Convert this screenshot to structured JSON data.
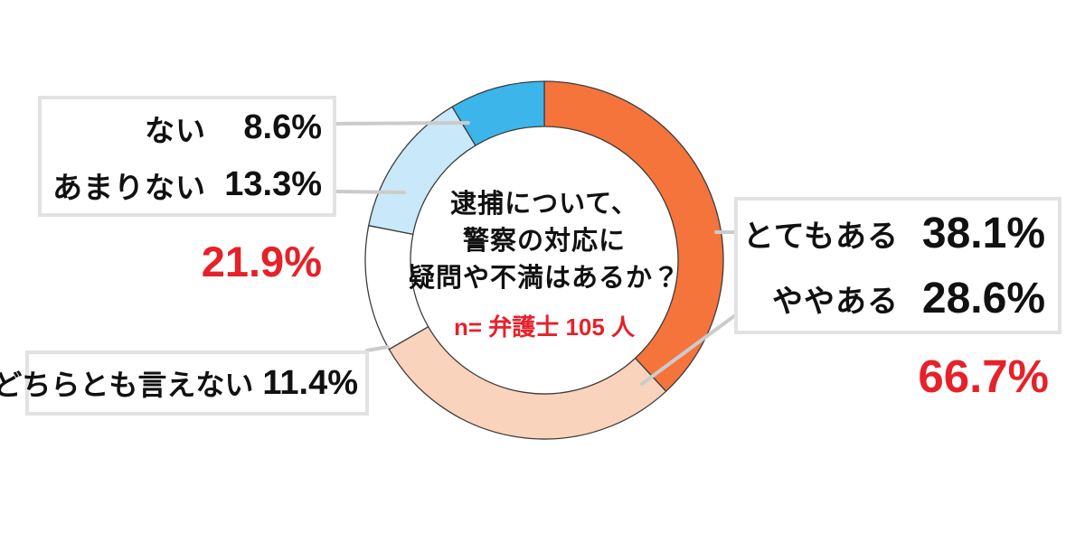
{
  "colors": {
    "background": "#FFFFFF",
    "accent_red": "#E62129",
    "segment_outline": "#3C3C3C",
    "leader_line": "#CBCBCB",
    "box_border": "#E2E2E2",
    "text": "#111111"
  },
  "chart_data": {
    "type": "pie",
    "subtype": "donut",
    "title": "逮捕について、警察の対応に疑問や不満はあるか？",
    "title_lines": [
      "逮捕について、",
      "警察の対応に",
      "疑問や不満はあるか？"
    ],
    "sample_note": "n= 弁護士 105 人",
    "unit": "%",
    "start_angle": "top",
    "direction": "clockwise",
    "legend_position": "callout-boxes",
    "segments": [
      {
        "label": "とてもある",
        "value": 38.1,
        "display": "38.1%",
        "color": "#F4743B"
      },
      {
        "label": "ややある",
        "value": 28.6,
        "display": "28.6%",
        "color": "#F9D3BC"
      },
      {
        "label": "どちらとも言えない",
        "value": 11.4,
        "display": "11.4%",
        "color": "#FFFFFF"
      },
      {
        "label": "あまりない",
        "value": 13.3,
        "display": "13.3%",
        "color": "#C9E8F9"
      },
      {
        "label": "ない",
        "value": 8.6,
        "display": "8.6%",
        "color": "#3CB6EA"
      }
    ],
    "group_totals": [
      {
        "members": [
          "とてもある",
          "ややある"
        ],
        "value": 66.7,
        "display": "66.7%"
      },
      {
        "members": [
          "ない",
          "あまりない"
        ],
        "value": 21.9,
        "display": "21.9%"
      }
    ]
  }
}
